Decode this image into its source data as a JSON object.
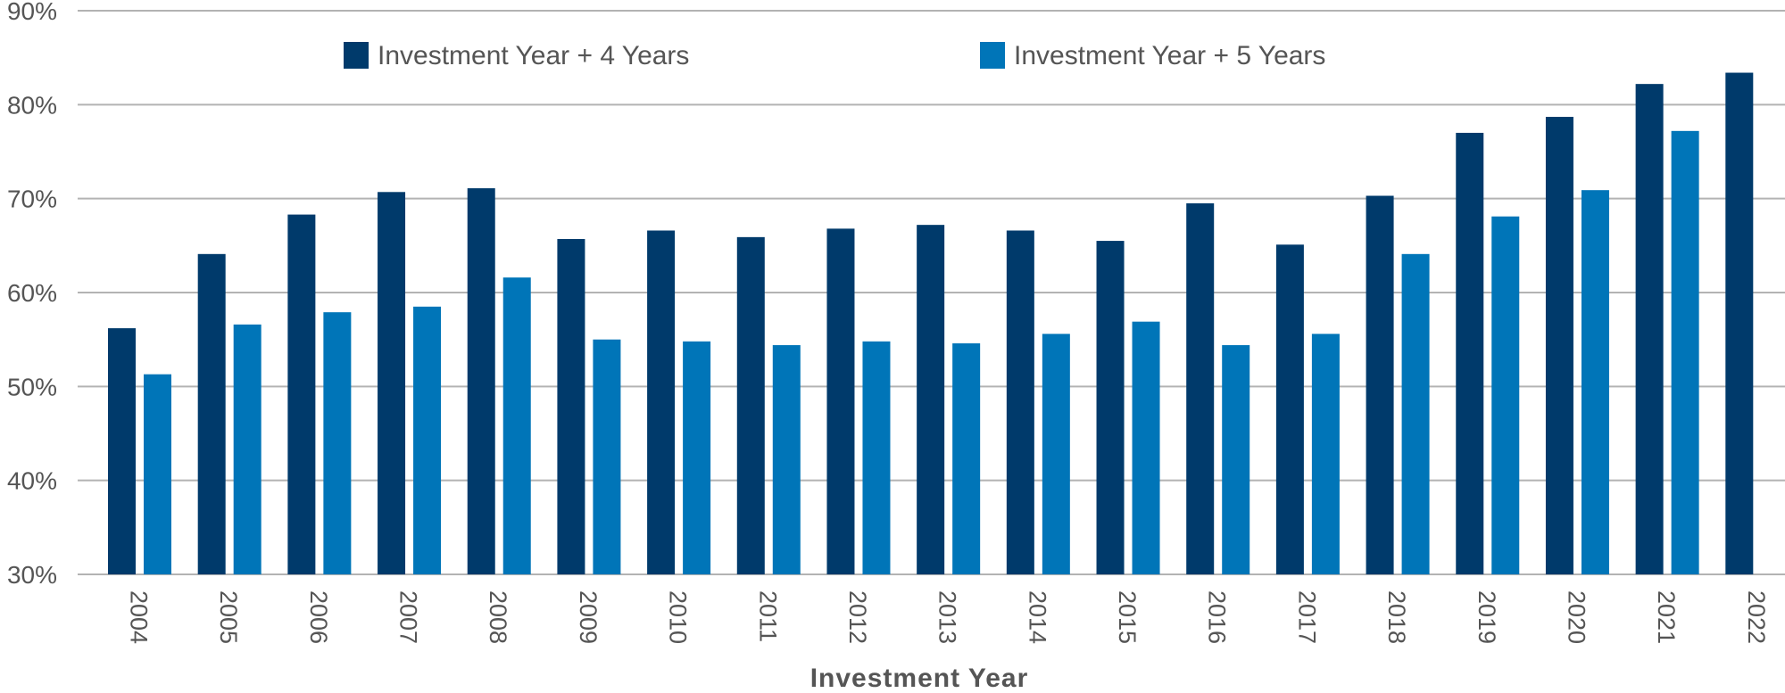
{
  "chart_data": {
    "type": "bar",
    "categories": [
      "2004",
      "2005",
      "2006",
      "2007",
      "2008",
      "2009",
      "2010",
      "2011",
      "2012",
      "2013",
      "2014",
      "2015",
      "2016",
      "2017",
      "2018",
      "2019",
      "2020",
      "2021",
      "2022"
    ],
    "series": [
      {
        "name": "Investment Year + 4 Years",
        "color": "#003a6b",
        "values": [
          56.2,
          64.1,
          68.3,
          70.7,
          71.1,
          65.7,
          66.6,
          65.9,
          66.8,
          67.2,
          66.6,
          65.5,
          69.5,
          65.1,
          70.3,
          77.0,
          78.7,
          82.2,
          83.4
        ]
      },
      {
        "name": "Investment Year + 5 Years",
        "color": "#0075b8",
        "values": [
          51.3,
          56.6,
          57.9,
          58.5,
          61.6,
          55.0,
          54.8,
          54.4,
          54.8,
          54.6,
          55.6,
          56.9,
          54.4,
          55.6,
          64.1,
          68.1,
          70.9,
          77.2,
          null
        ]
      }
    ],
    "yticks": [
      "30%",
      "40%",
      "50%",
      "60%",
      "70%",
      "80%",
      "90%"
    ],
    "ytick_values": [
      30,
      40,
      50,
      60,
      70,
      80,
      90
    ],
    "ylim": [
      30,
      90
    ],
    "xlabel": "Investment Year",
    "ylabel": "",
    "grid": true,
    "legend_position": "top"
  }
}
